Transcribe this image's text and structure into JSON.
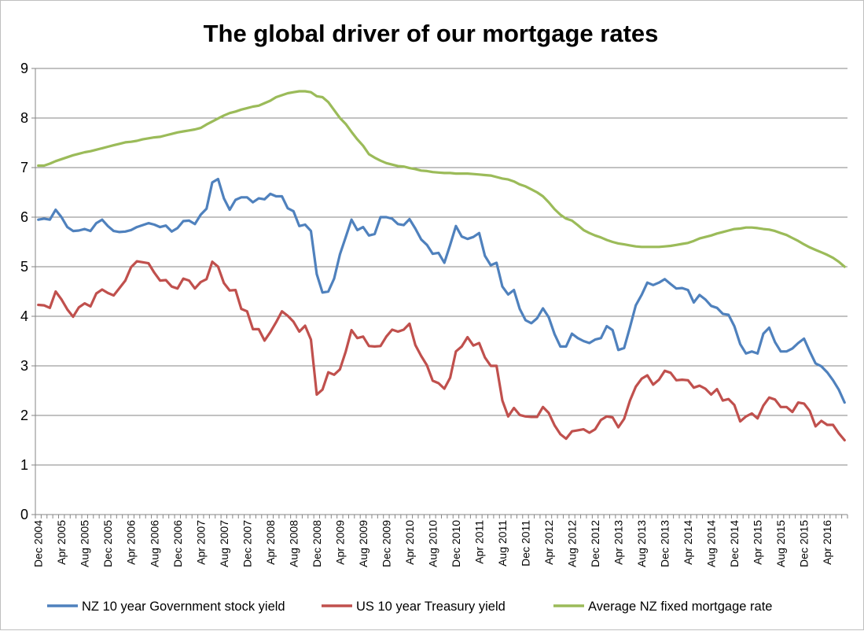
{
  "chart_data": {
    "type": "line",
    "title": "The global driver of our mortgage rates",
    "xlabel": "",
    "ylabel": "",
    "ylim": [
      0,
      9
    ],
    "yticks": [
      "0",
      "1",
      "2",
      "3",
      "4",
      "5",
      "6",
      "7",
      "8",
      "9"
    ],
    "grid": true,
    "legend_position": "bottom",
    "x_start": "Dec 2004",
    "x_end": "Aug 2016",
    "x_step": "monthly",
    "tick_labels": [
      "Dec 2004",
      "Apr 2005",
      "Aug 2005",
      "Dec 2005",
      "Apr 2006",
      "Aug 2006",
      "Dec 2006",
      "Apr 2007",
      "Aug 2007",
      "Dec 2007",
      "Apr 2008",
      "Aug 2008",
      "Dec 2008",
      "Apr 2009",
      "Aug 2009",
      "Dec 2009",
      "Apr 2010",
      "Aug 2010",
      "Dec 2010",
      "Apr 2011",
      "Aug 2011",
      "Dec 2011",
      "Apr 2012",
      "Aug 2012",
      "Dec 2012",
      "Apr 2013",
      "Aug 2013",
      "Dec 2013",
      "Apr 2014",
      "Aug 2014",
      "Dec 2014",
      "Apr 2015",
      "Aug 2015",
      "Dec 2015",
      "Apr 2016"
    ],
    "series": [
      {
        "name": "NZ 10 year Government stock yield",
        "color": "#4f81bd",
        "values": [
          5.95,
          5.97,
          5.95,
          6.15,
          6.0,
          5.8,
          5.72,
          5.73,
          5.76,
          5.72,
          5.88,
          5.95,
          5.82,
          5.72,
          5.7,
          5.71,
          5.74,
          5.8,
          5.84,
          5.88,
          5.85,
          5.8,
          5.83,
          5.71,
          5.78,
          5.92,
          5.93,
          5.86,
          6.05,
          6.17,
          6.7,
          6.77,
          6.38,
          6.15,
          6.35,
          6.4,
          6.4,
          6.3,
          6.38,
          6.36,
          6.47,
          6.42,
          6.42,
          6.18,
          6.12,
          5.82,
          5.85,
          5.72,
          4.85,
          4.48,
          4.5,
          4.76,
          5.25,
          5.6,
          5.95,
          5.74,
          5.8,
          5.63,
          5.66,
          6.0,
          6.0,
          5.97,
          5.86,
          5.84,
          5.96,
          5.77,
          5.55,
          5.44,
          5.26,
          5.28,
          5.08,
          5.44,
          5.82,
          5.61,
          5.56,
          5.6,
          5.68,
          5.22,
          5.03,
          5.08,
          4.6,
          4.44,
          4.53,
          4.15,
          3.92,
          3.86,
          3.96,
          4.16,
          3.98,
          3.64,
          3.39,
          3.39,
          3.65,
          3.56,
          3.5,
          3.46,
          3.53,
          3.56,
          3.8,
          3.72,
          3.32,
          3.36,
          3.78,
          4.22,
          4.43,
          4.68,
          4.63,
          4.68,
          4.75,
          4.65,
          4.56,
          4.57,
          4.53,
          4.28,
          4.43,
          4.34,
          4.21,
          4.17,
          4.05,
          4.03,
          3.8,
          3.44,
          3.25,
          3.29,
          3.25,
          3.65,
          3.77,
          3.48,
          3.29,
          3.29,
          3.35,
          3.46,
          3.55,
          3.29,
          3.05,
          2.99,
          2.87,
          2.71,
          2.52,
          2.26
        ]
      },
      {
        "name": "US 10 year Treasury yield",
        "color": "#c0504d",
        "values": [
          4.23,
          4.22,
          4.17,
          4.5,
          4.34,
          4.14,
          3.99,
          4.18,
          4.26,
          4.2,
          4.46,
          4.54,
          4.47,
          4.42,
          4.57,
          4.72,
          4.99,
          5.11,
          5.09,
          5.07,
          4.88,
          4.72,
          4.73,
          4.6,
          4.56,
          4.76,
          4.72,
          4.56,
          4.69,
          4.75,
          5.1,
          5.0,
          4.67,
          4.52,
          4.53,
          4.15,
          4.1,
          3.74,
          3.74,
          3.51,
          3.68,
          3.88,
          4.1,
          4.01,
          3.89,
          3.69,
          3.81,
          3.53,
          2.42,
          2.52,
          2.87,
          2.82,
          2.93,
          3.29,
          3.72,
          3.56,
          3.59,
          3.4,
          3.39,
          3.4,
          3.59,
          3.73,
          3.69,
          3.73,
          3.85,
          3.42,
          3.2,
          3.01,
          2.7,
          2.65,
          2.54,
          2.76,
          3.29,
          3.39,
          3.58,
          3.41,
          3.46,
          3.17,
          3.0,
          3.0,
          2.3,
          1.98,
          2.15,
          2.01,
          1.98,
          1.97,
          1.97,
          2.17,
          2.05,
          1.8,
          1.62,
          1.53,
          1.68,
          1.7,
          1.72,
          1.65,
          1.72,
          1.91,
          1.98,
          1.96,
          1.76,
          1.93,
          2.3,
          2.58,
          2.74,
          2.81,
          2.62,
          2.72,
          2.9,
          2.86,
          2.71,
          2.72,
          2.71,
          2.56,
          2.6,
          2.54,
          2.42,
          2.53,
          2.3,
          2.33,
          2.21,
          1.88,
          1.98,
          2.04,
          1.94,
          2.2,
          2.36,
          2.32,
          2.17,
          2.17,
          2.07,
          2.26,
          2.24,
          2.09,
          1.78,
          1.89,
          1.81,
          1.81,
          1.64,
          1.5
        ]
      },
      {
        "name": "Average NZ fixed mortgage rate",
        "color": "#9bbb59",
        "values": [
          7.04,
          7.04,
          7.08,
          7.13,
          7.17,
          7.21,
          7.25,
          7.28,
          7.31,
          7.33,
          7.36,
          7.39,
          7.42,
          7.45,
          7.48,
          7.51,
          7.52,
          7.54,
          7.57,
          7.59,
          7.61,
          7.62,
          7.65,
          7.68,
          7.71,
          7.73,
          7.75,
          7.77,
          7.8,
          7.87,
          7.93,
          7.99,
          8.05,
          8.1,
          8.13,
          8.17,
          8.2,
          8.23,
          8.25,
          8.3,
          8.35,
          8.42,
          8.46,
          8.5,
          8.52,
          8.54,
          8.54,
          8.52,
          8.44,
          8.42,
          8.32,
          8.16,
          8.0,
          7.88,
          7.72,
          7.57,
          7.44,
          7.27,
          7.2,
          7.14,
          7.09,
          7.06,
          7.03,
          7.02,
          6.99,
          6.97,
          6.94,
          6.93,
          6.91,
          6.9,
          6.89,
          6.89,
          6.88,
          6.88,
          6.88,
          6.87,
          6.86,
          6.85,
          6.84,
          6.81,
          6.78,
          6.76,
          6.72,
          6.66,
          6.62,
          6.56,
          6.5,
          6.42,
          6.3,
          6.16,
          6.05,
          5.97,
          5.93,
          5.84,
          5.74,
          5.68,
          5.63,
          5.59,
          5.54,
          5.5,
          5.47,
          5.45,
          5.43,
          5.41,
          5.4,
          5.4,
          5.4,
          5.4,
          5.41,
          5.42,
          5.44,
          5.46,
          5.48,
          5.52,
          5.57,
          5.6,
          5.63,
          5.67,
          5.7,
          5.73,
          5.76,
          5.77,
          5.79,
          5.79,
          5.78,
          5.76,
          5.75,
          5.72,
          5.68,
          5.64,
          5.58,
          5.52,
          5.45,
          5.39,
          5.34,
          5.29,
          5.24,
          5.18,
          5.1,
          5.0
        ]
      }
    ]
  }
}
